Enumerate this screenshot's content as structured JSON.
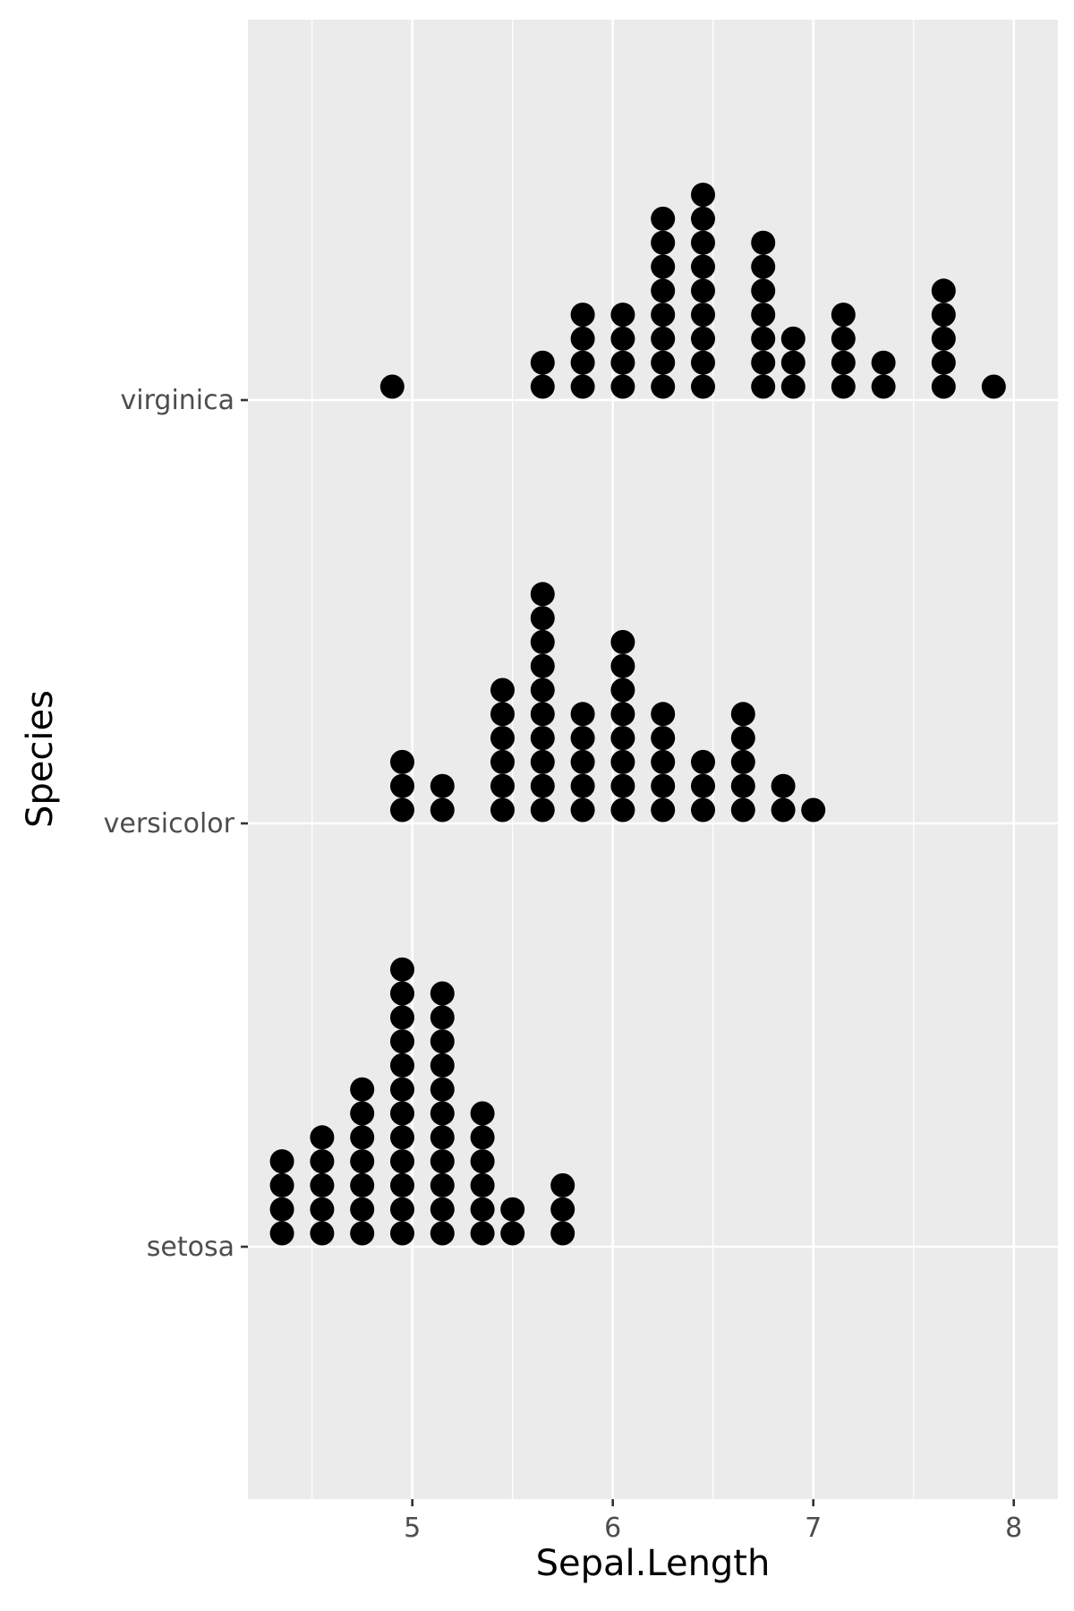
{
  "chart_data": {
    "type": "scatter",
    "subtype": "dotplot",
    "title": "",
    "xlabel": "Sepal.Length",
    "ylabel": "Species",
    "xlim": [
      4.18,
      8.22
    ],
    "x_ticks": [
      5,
      6,
      7,
      8
    ],
    "x_tick_labels": [
      "5",
      "6",
      "7",
      "8"
    ],
    "x_minor_ticks": [
      4.5,
      5.5,
      6.5,
      7.5
    ],
    "categories": [
      "setosa",
      "versicolor",
      "virginica"
    ],
    "grid": true,
    "legend": "none",
    "colors": {
      "panel": "#ebebeb",
      "grid": "#ffffff",
      "dot": "#000000",
      "tick_text": "#4d4d4d",
      "title_text": "#000000"
    },
    "series": [
      {
        "category": "setosa",
        "stacks": [
          {
            "x": 4.35,
            "count": 4
          },
          {
            "x": 4.55,
            "count": 5
          },
          {
            "x": 4.75,
            "count": 7
          },
          {
            "x": 4.95,
            "count": 12
          },
          {
            "x": 5.15,
            "count": 11
          },
          {
            "x": 5.35,
            "count": 6
          },
          {
            "x": 5.5,
            "count": 2
          },
          {
            "x": 5.75,
            "count": 3
          }
        ]
      },
      {
        "category": "versicolor",
        "stacks": [
          {
            "x": 4.95,
            "count": 3
          },
          {
            "x": 5.15,
            "count": 2
          },
          {
            "x": 5.45,
            "count": 6
          },
          {
            "x": 5.65,
            "count": 10
          },
          {
            "x": 5.85,
            "count": 5
          },
          {
            "x": 6.05,
            "count": 8
          },
          {
            "x": 6.25,
            "count": 5
          },
          {
            "x": 6.45,
            "count": 3
          },
          {
            "x": 6.65,
            "count": 5
          },
          {
            "x": 6.85,
            "count": 2
          },
          {
            "x": 7.0,
            "count": 1
          }
        ]
      },
      {
        "category": "virginica",
        "stacks": [
          {
            "x": 4.9,
            "count": 1
          },
          {
            "x": 5.65,
            "count": 2
          },
          {
            "x": 5.85,
            "count": 4
          },
          {
            "x": 6.05,
            "count": 4
          },
          {
            "x": 6.25,
            "count": 8
          },
          {
            "x": 6.45,
            "count": 9
          },
          {
            "x": 6.75,
            "count": 7
          },
          {
            "x": 6.9,
            "count": 3
          },
          {
            "x": 7.15,
            "count": 4
          },
          {
            "x": 7.35,
            "count": 2
          },
          {
            "x": 7.65,
            "count": 5
          },
          {
            "x": 7.9,
            "count": 1
          }
        ]
      }
    ]
  }
}
